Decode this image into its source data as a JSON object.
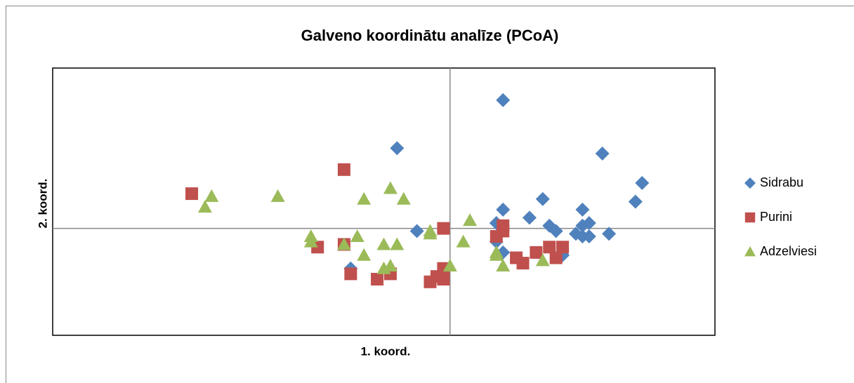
{
  "chart_data": {
    "type": "scatter",
    "title": "Galveno koordinātu analīze (PCoA)",
    "x_label": "1. koord.",
    "y_label": "2. koord.",
    "xlim": [
      -0.6,
      0.4
    ],
    "ylim": [
      -0.4,
      0.6
    ],
    "legend": "right",
    "series": [
      {
        "name": "Sidrabu",
        "color": "#4f81bd",
        "marker": "diamond",
        "x": [
          0.08,
          -0.08,
          0.23,
          0.29,
          0.28,
          0.14,
          0.08,
          0.12,
          0.2,
          -0.05,
          0.07,
          0.15,
          0.16,
          0.2,
          0.21,
          0.19,
          0.2,
          0.21,
          0.24,
          0.07,
          0.08,
          0.17,
          -0.15
        ],
        "values": [
          0.48,
          0.3,
          0.28,
          0.17,
          0.1,
          0.11,
          0.07,
          0.04,
          0.07,
          -0.01,
          0.02,
          0.01,
          -0.01,
          0.01,
          0.02,
          -0.02,
          -0.03,
          -0.03,
          -0.02,
          -0.05,
          -0.09,
          -0.1,
          -0.15
        ]
      },
      {
        "name": "Purini",
        "color": "#c0504d",
        "marker": "square",
        "x": [
          -0.39,
          -0.16,
          -0.01,
          -0.2,
          -0.16,
          -0.15,
          -0.11,
          -0.09,
          -0.03,
          -0.02,
          -0.01,
          -0.01,
          0.08,
          0.08,
          0.07,
          0.1,
          0.11,
          0.13,
          0.15,
          0.17,
          0.16
        ],
        "values": [
          0.13,
          0.22,
          0.0,
          -0.07,
          -0.06,
          -0.17,
          -0.19,
          -0.17,
          -0.2,
          -0.18,
          -0.19,
          -0.15,
          0.01,
          -0.01,
          -0.03,
          -0.11,
          -0.13,
          -0.09,
          -0.07,
          -0.07,
          -0.11
        ]
      },
      {
        "name": "Adzelviesi",
        "color": "#9bbb59",
        "marker": "triangle",
        "x": [
          -0.36,
          -0.37,
          -0.26,
          -0.13,
          -0.09,
          -0.07,
          -0.21,
          -0.21,
          -0.14,
          -0.16,
          -0.13,
          -0.1,
          -0.08,
          -0.03,
          -0.03,
          0.03,
          0.02,
          -0.1,
          -0.09,
          0.0,
          0.07,
          0.07,
          0.08,
          0.14
        ],
        "values": [
          0.12,
          0.08,
          0.12,
          0.11,
          0.15,
          0.11,
          -0.03,
          -0.05,
          -0.03,
          -0.06,
          -0.1,
          -0.06,
          -0.06,
          -0.02,
          -0.01,
          0.03,
          -0.05,
          -0.15,
          -0.14,
          -0.14,
          -0.09,
          -0.1,
          -0.14,
          -0.12
        ]
      }
    ]
  }
}
